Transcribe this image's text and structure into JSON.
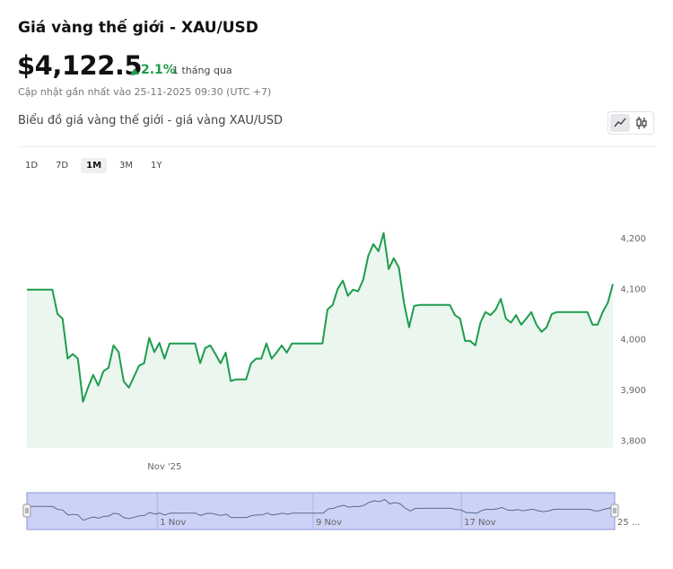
{
  "page": {
    "title": "Giá vàng thế giới - XAU/USD",
    "price": "$4,122.5",
    "change": "2.1%",
    "change_period": "1 tháng qua",
    "updated": "Cập nhật gần nhất vào 25-11-2025 09:30 (UTC +7)",
    "chart_title": "Biểu đồ giá vàng thế giới - giá vàng XAU/USD",
    "ranges": [
      "1D",
      "7D",
      "1M",
      "3M",
      "1Y"
    ],
    "active_range": "1M"
  },
  "chart_data": {
    "type": "line",
    "color": "#1e9c4e",
    "fill": "#eaf6ee",
    "values": [
      4099,
      4099,
      4099,
      4099,
      4099,
      4099,
      4051,
      4042,
      3963,
      3972,
      3963,
      3878,
      3906,
      3931,
      3910,
      3938,
      3945,
      3989,
      3976,
      3918,
      3906,
      3927,
      3949,
      3954,
      4004,
      3976,
      3994,
      3963,
      3993,
      3993,
      3993,
      3993,
      3993,
      3993,
      3954,
      3984,
      3989,
      3972,
      3954,
      3975,
      3919,
      3922,
      3922,
      3922,
      3954,
      3963,
      3963,
      3993,
      3963,
      3975,
      3989,
      3975,
      3993,
      3993,
      3993,
      3993,
      3993,
      3993,
      3993,
      4060,
      4069,
      4101,
      4117,
      4087,
      4099,
      4096,
      4119,
      4166,
      4189,
      4175,
      4211,
      4140,
      4161,
      4143,
      4073,
      4025,
      4067,
      4069,
      4069,
      4069,
      4069,
      4069,
      4069,
      4069,
      4049,
      4042,
      3998,
      3998,
      3989,
      4034,
      4055,
      4049,
      4060,
      4081,
      4042,
      4034,
      4049,
      4030,
      4042,
      4055,
      4030,
      4016,
      4025,
      4051,
      4055,
      4055,
      4055,
      4055,
      4055,
      4055,
      4055,
      4030,
      4030,
      4055,
      4073,
      4110
    ],
    "ylim": [
      3787,
      4290
    ],
    "yticks": [
      {
        "value": 3800,
        "label": "3,800"
      },
      {
        "value": 3900,
        "label": "3,900"
      },
      {
        "value": 4000,
        "label": "4,000"
      },
      {
        "value": 4100,
        "label": "4,100"
      },
      {
        "value": 4200,
        "label": "4,200"
      }
    ],
    "xticks": [
      {
        "value": 27,
        "label": "Nov '25"
      }
    ],
    "grid": false,
    "navigator_ticks": [
      {
        "value": 25.5,
        "label": "1 Nov"
      },
      {
        "value": 56,
        "label": "9 Nov"
      },
      {
        "value": 85,
        "label": "17 Nov"
      },
      {
        "value": 115,
        "label": "25 ..."
      }
    ]
  }
}
